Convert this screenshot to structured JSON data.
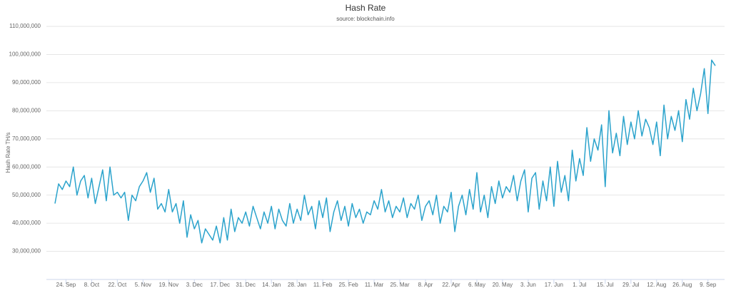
{
  "chart_data": {
    "type": "line",
    "title": "Hash Rate",
    "subtitle": "source: blockchain.info",
    "y_label": "Hash Rate TH/s",
    "categories": [
      null,
      null,
      null,
      "24. Sep",
      null,
      null,
      null,
      null,
      null,
      null,
      "8. Oct",
      null,
      null,
      null,
      null,
      null,
      null,
      "22. Oct",
      null,
      null,
      null,
      null,
      null,
      null,
      "5. Nov",
      null,
      null,
      null,
      null,
      null,
      null,
      "19. Nov",
      null,
      null,
      null,
      null,
      null,
      null,
      "3. Dec",
      null,
      null,
      null,
      null,
      null,
      null,
      "17. Dec",
      null,
      null,
      null,
      null,
      null,
      null,
      "31. Dec",
      null,
      null,
      null,
      null,
      null,
      null,
      "14. Jan",
      null,
      null,
      null,
      null,
      null,
      null,
      "28. Jan",
      null,
      null,
      null,
      null,
      null,
      null,
      "11. Feb",
      null,
      null,
      null,
      null,
      null,
      null,
      "25. Feb",
      null,
      null,
      null,
      null,
      null,
      null,
      "11. Mar",
      null,
      null,
      null,
      null,
      null,
      null,
      "25. Mar",
      null,
      null,
      null,
      null,
      null,
      null,
      "8. Apr",
      null,
      null,
      null,
      null,
      null,
      null,
      "22. Apr",
      null,
      null,
      null,
      null,
      null,
      null,
      "6. May",
      null,
      null,
      null,
      null,
      null,
      null,
      "20. May",
      null,
      null,
      null,
      null,
      null,
      null,
      "3. Jun",
      null,
      null,
      null,
      null,
      null,
      null,
      "17. Jun",
      null,
      null,
      null,
      null,
      null,
      null,
      "1. Jul",
      null,
      null,
      null,
      null,
      null,
      null,
      "15. Jul",
      null,
      null,
      null,
      null,
      null,
      null,
      "29. Jul",
      null,
      null,
      null,
      null,
      null,
      null,
      "12. Aug",
      null,
      null,
      null,
      null,
      null,
      null,
      "26. Aug",
      null,
      null,
      null,
      null,
      null,
      null,
      "9. Sep",
      null,
      null
    ],
    "series": [
      {
        "name": "Hash Rate",
        "color": "#2ba3cc",
        "values": [
          47000000,
          54000000,
          52000000,
          55000000,
          53000000,
          60000000,
          50000000,
          55000000,
          57000000,
          49000000,
          56000000,
          47000000,
          53000000,
          59000000,
          48000000,
          60000000,
          50000000,
          51000000,
          49000000,
          51000000,
          41000000,
          50000000,
          48000000,
          53000000,
          55000000,
          58000000,
          51000000,
          56000000,
          45000000,
          47000000,
          44000000,
          52000000,
          44000000,
          47000000,
          40000000,
          48000000,
          35000000,
          43000000,
          38000000,
          41000000,
          33000000,
          38000000,
          36000000,
          34000000,
          39000000,
          33000000,
          42000000,
          34000000,
          45000000,
          37000000,
          42000000,
          40000000,
          44000000,
          39000000,
          46000000,
          42000000,
          38000000,
          44000000,
          40000000,
          46000000,
          38000000,
          45000000,
          41000000,
          39000000,
          47000000,
          40000000,
          45000000,
          41000000,
          50000000,
          43000000,
          46000000,
          38000000,
          48000000,
          42000000,
          49000000,
          37000000,
          44000000,
          48000000,
          41000000,
          46000000,
          39000000,
          47000000,
          42000000,
          45000000,
          40000000,
          44000000,
          43000000,
          48000000,
          45000000,
          52000000,
          44000000,
          48000000,
          42000000,
          46000000,
          44000000,
          49000000,
          42000000,
          47000000,
          45000000,
          50000000,
          41000000,
          46000000,
          48000000,
          43000000,
          50000000,
          40000000,
          46000000,
          44000000,
          51000000,
          37000000,
          46000000,
          50000000,
          43000000,
          52000000,
          45000000,
          58000000,
          44000000,
          50000000,
          42000000,
          53000000,
          47000000,
          55000000,
          49000000,
          53000000,
          51000000,
          57000000,
          48000000,
          55000000,
          59000000,
          44000000,
          56000000,
          58000000,
          45000000,
          55000000,
          48000000,
          60000000,
          46000000,
          62000000,
          51000000,
          57000000,
          48000000,
          66000000,
          55000000,
          63000000,
          57000000,
          74000000,
          62000000,
          70000000,
          66000000,
          75000000,
          53000000,
          80000000,
          65000000,
          72000000,
          64000000,
          78000000,
          68000000,
          76000000,
          70000000,
          80000000,
          71000000,
          77000000,
          74000000,
          68000000,
          76000000,
          64000000,
          82000000,
          70000000,
          78000000,
          73000000,
          80000000,
          69000000,
          84000000,
          77000000,
          88000000,
          80000000,
          86000000,
          95000000,
          79000000,
          98000000,
          96000000
        ]
      }
    ],
    "ylim": [
      20000000,
      110000000
    ],
    "yticks": [
      {
        "value": 30000000,
        "label": "30,000,000"
      },
      {
        "value": 40000000,
        "label": "40,000,000"
      },
      {
        "value": 50000000,
        "label": "50,000,000"
      },
      {
        "value": 60000000,
        "label": "60,000,000"
      },
      {
        "value": 70000000,
        "label": "70,000,000"
      },
      {
        "value": 80000000,
        "label": "80,000,000"
      },
      {
        "value": 90000000,
        "label": "90,000,000"
      },
      {
        "value": 100000000,
        "label": "100,000,000"
      },
      {
        "value": 110000000,
        "label": "110,000,000"
      }
    ],
    "grid": true
  }
}
